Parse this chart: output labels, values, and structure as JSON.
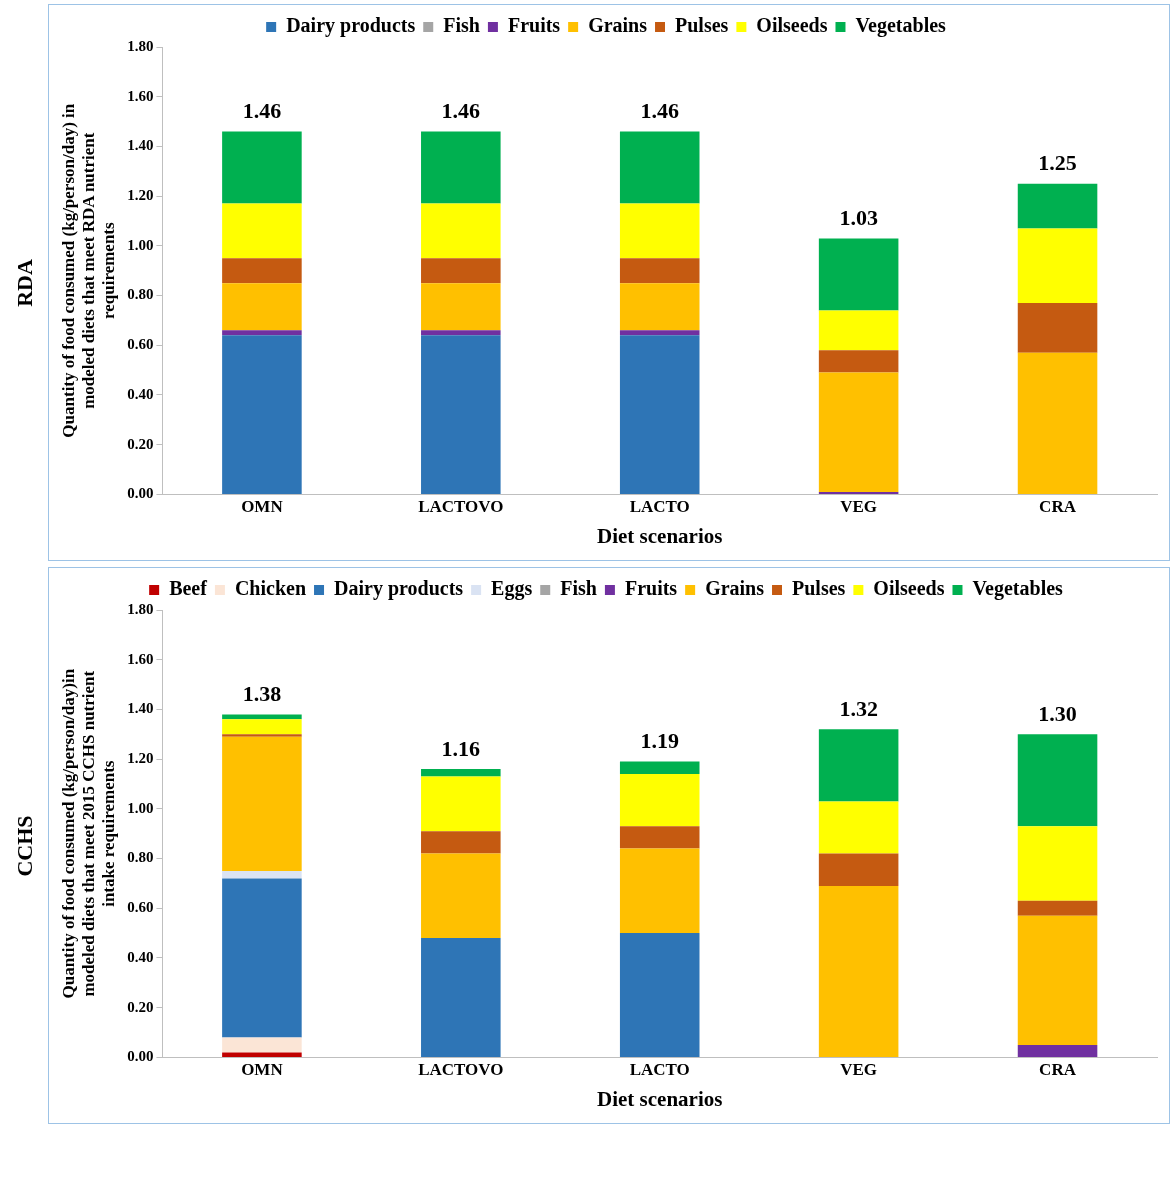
{
  "chart_data": [
    {
      "type": "bar",
      "stacked": true,
      "categories": [
        "OMN",
        "LACTOVO",
        "LACTO",
        "VEG",
        "CRA"
      ],
      "xlabel": "Diet scenarios",
      "ylabel": "Quantity of food consumed (kg/person/day) in modeled diets that meet RDA nutrient requirements",
      "annotations": [
        "RDA"
      ],
      "legend": "top",
      "grid": false,
      "ylim": [
        0,
        1.8
      ],
      "yticks": [
        {
          "value": 0,
          "label": "0.00"
        },
        {
          "value": 0.2,
          "label": "0.20"
        },
        {
          "value": 0.4,
          "label": "0.40"
        },
        {
          "value": 0.6,
          "label": "0.60"
        },
        {
          "value": 0.8,
          "label": "0.80"
        },
        {
          "value": 1,
          "label": "1.00"
        },
        {
          "value": 1.2,
          "label": "1.20"
        },
        {
          "value": 1.4,
          "label": "1.40"
        },
        {
          "value": 1.6,
          "label": "1.60"
        },
        {
          "value": 1.8,
          "label": "1.80"
        }
      ],
      "series": [
        {
          "name": "Dairy products",
          "color": "#2e75b6",
          "values": [
            0.64,
            0.64,
            0.64,
            0,
            0
          ]
        },
        {
          "name": "Fish",
          "color": "#a5a5a5",
          "values": [
            0,
            0,
            0,
            0,
            0
          ]
        },
        {
          "name": "Fruits",
          "color": "#7030a0",
          "values": [
            0.02,
            0.02,
            0.02,
            0.01,
            0
          ]
        },
        {
          "name": "Grains",
          "color": "#ffc000",
          "values": [
            0.19,
            0.19,
            0.19,
            0.48,
            0.57
          ]
        },
        {
          "name": "Pulses",
          "color": "#c55a11",
          "values": [
            0.1,
            0.1,
            0.1,
            0.09,
            0.2
          ]
        },
        {
          "name": "Oilseeds",
          "color": "#ffff00",
          "values": [
            0.22,
            0.22,
            0.22,
            0.16,
            0.3
          ]
        },
        {
          "name": "Vegetables",
          "color": "#00b050",
          "values": [
            0.29,
            0.29,
            0.29,
            0.29,
            0.18
          ]
        }
      ],
      "totals": [
        "1.46",
        "1.46",
        "1.46",
        "1.03",
        "1.25"
      ]
    },
    {
      "type": "bar",
      "stacked": true,
      "categories": [
        "OMN",
        "LACTOVO",
        "LACTO",
        "VEG",
        "CRA"
      ],
      "xlabel": "Diet scenarios",
      "ylabel": "Quantity of food consumed (kg/person/day)in modeled diets that meet 2015 CCHS nutrient intake requirements",
      "annotations": [
        "CCHS"
      ],
      "legend": "top",
      "grid": false,
      "ylim": [
        0,
        1.8
      ],
      "yticks": [
        {
          "value": 0,
          "label": "0.00"
        },
        {
          "value": 0.2,
          "label": "0.20"
        },
        {
          "value": 0.4,
          "label": "0.40"
        },
        {
          "value": 0.6,
          "label": "0.60"
        },
        {
          "value": 0.8,
          "label": "0.80"
        },
        {
          "value": 1,
          "label": "1.00"
        },
        {
          "value": 1.2,
          "label": "1.20"
        },
        {
          "value": 1.4,
          "label": "1.40"
        },
        {
          "value": 1.6,
          "label": "1.60"
        },
        {
          "value": 1.8,
          "label": "1.80"
        }
      ],
      "series": [
        {
          "name": "Beef",
          "color": "#c00000",
          "values": [
            0.02,
            0,
            0,
            0,
            0
          ]
        },
        {
          "name": "Chicken",
          "color": "#fbe5d6",
          "values": [
            0.06,
            0,
            0,
            0,
            0
          ]
        },
        {
          "name": "Dairy products",
          "color": "#2e75b6",
          "values": [
            0.64,
            0.48,
            0.5,
            0,
            0
          ]
        },
        {
          "name": "Eggs",
          "color": "#dae3f3",
          "values": [
            0.03,
            0,
            0,
            0,
            0
          ]
        },
        {
          "name": "Fish",
          "color": "#a5a5a5",
          "values": [
            0,
            0,
            0,
            0,
            0
          ]
        },
        {
          "name": "Fruits",
          "color": "#7030a0",
          "values": [
            0,
            0,
            0,
            0,
            0.05
          ]
        },
        {
          "name": "Grains",
          "color": "#ffc000",
          "values": [
            0.54,
            0.34,
            0.34,
            0.69,
            0.52
          ]
        },
        {
          "name": "Pulses",
          "color": "#c55a11",
          "values": [
            0.01,
            0.09,
            0.09,
            0.13,
            0.06
          ]
        },
        {
          "name": "Oilseeds",
          "color": "#ffff00",
          "values": [
            0.06,
            0.22,
            0.21,
            0.21,
            0.3
          ]
        },
        {
          "name": "Vegetables",
          "color": "#00b050",
          "values": [
            0.02,
            0.03,
            0.05,
            0.29,
            0.37
          ]
        }
      ],
      "totals": [
        "1.38",
        "1.16",
        "1.19",
        "1.32",
        "1.30"
      ]
    }
  ]
}
